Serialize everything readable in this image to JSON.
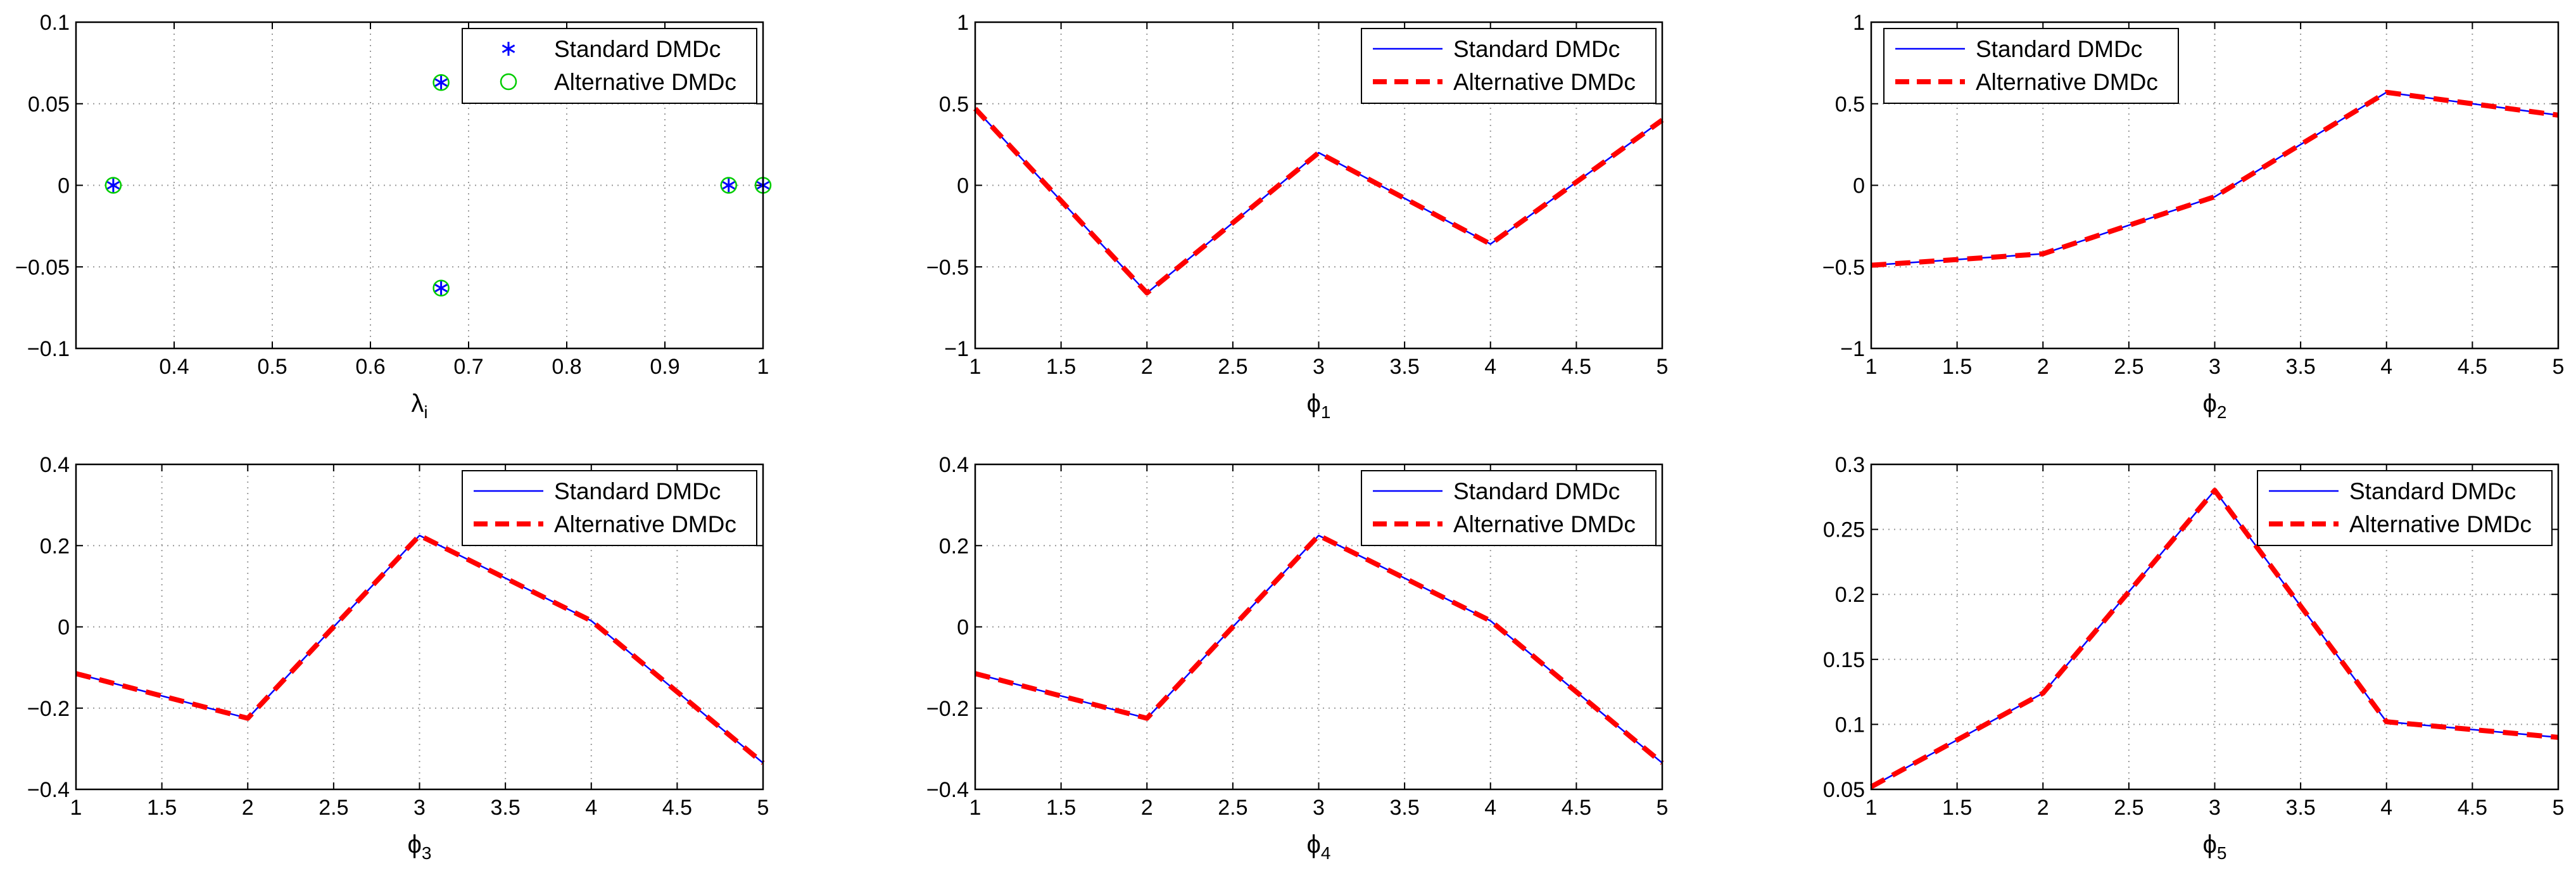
{
  "chart_data": [
    {
      "id": "eigenvalues",
      "type": "scatter",
      "xlabel": "λ",
      "xlabel_sub": "i",
      "xlim": [
        0.3,
        1.0
      ],
      "ylim": [
        -0.1,
        0.1
      ],
      "xticks": [
        0.4,
        0.5,
        0.6,
        0.7,
        0.8,
        0.9,
        1.0
      ],
      "xtick_labels": [
        "0.4",
        "0.5",
        "0.6",
        "0.7",
        "0.8",
        "0.9",
        "1"
      ],
      "yticks": [
        -0.1,
        -0.05,
        0,
        0.05,
        0.1
      ],
      "ytick_labels": [
        "−0.1",
        "−0.05",
        "0",
        "0.05",
        "0.1"
      ],
      "grid": true,
      "legend_position": "top-right",
      "series": [
        {
          "name": "Standard DMDc",
          "marker": "asterisk",
          "color": "#0000ff",
          "points": [
            [
              0.338,
              0
            ],
            [
              0.672,
              0.063
            ],
            [
              0.672,
              -0.063
            ],
            [
              0.965,
              0
            ],
            [
              1.0,
              0
            ]
          ]
        },
        {
          "name": "Alternative DMDc",
          "marker": "circle",
          "color": "#00cc00",
          "points": [
            [
              0.338,
              0
            ],
            [
              0.672,
              0.063
            ],
            [
              0.672,
              -0.063
            ],
            [
              0.965,
              0
            ],
            [
              1.0,
              0
            ]
          ]
        }
      ]
    },
    {
      "id": "phi1",
      "type": "line",
      "xlabel": "ϕ",
      "xlabel_sub": "1",
      "x": [
        1,
        2,
        3,
        4,
        5
      ],
      "xlim": [
        1,
        5
      ],
      "ylim": [
        -1,
        1
      ],
      "xticks": [
        1,
        1.5,
        2,
        2.5,
        3,
        3.5,
        4,
        4.5,
        5
      ],
      "xtick_labels": [
        "1",
        "1.5",
        "2",
        "2.5",
        "3",
        "3.5",
        "4",
        "4.5",
        "5"
      ],
      "yticks": [
        -1,
        -0.5,
        0,
        0.5,
        1
      ],
      "ytick_labels": [
        "−1",
        "−0.5",
        "0",
        "0.5",
        "1"
      ],
      "grid": true,
      "legend_position": "top-right",
      "series": [
        {
          "name": "Standard DMDc",
          "style": "solid",
          "color": "#0000ff",
          "values": [
            0.47,
            -0.66,
            0.2,
            -0.36,
            0.4
          ]
        },
        {
          "name": "Alternative DMDc",
          "style": "dashed",
          "color": "#ff0000",
          "values": [
            0.47,
            -0.66,
            0.2,
            -0.36,
            0.4
          ]
        }
      ]
    },
    {
      "id": "phi2",
      "type": "line",
      "xlabel": "ϕ",
      "xlabel_sub": "2",
      "x": [
        1,
        2,
        3,
        4,
        5
      ],
      "xlim": [
        1,
        5
      ],
      "ylim": [
        -1,
        1
      ],
      "xticks": [
        1,
        1.5,
        2,
        2.5,
        3,
        3.5,
        4,
        4.5,
        5
      ],
      "xtick_labels": [
        "1",
        "1.5",
        "2",
        "2.5",
        "3",
        "3.5",
        "4",
        "4.5",
        "5"
      ],
      "yticks": [
        -1,
        -0.5,
        0,
        0.5,
        1
      ],
      "ytick_labels": [
        "−1",
        "−0.5",
        "0",
        "0.5",
        "1"
      ],
      "grid": true,
      "legend_position": "top-left",
      "series": [
        {
          "name": "Standard DMDc",
          "style": "solid",
          "color": "#0000ff",
          "values": [
            -0.49,
            -0.42,
            -0.07,
            0.57,
            0.43
          ]
        },
        {
          "name": "Alternative DMDc",
          "style": "dashed",
          "color": "#ff0000",
          "values": [
            -0.49,
            -0.42,
            -0.07,
            0.57,
            0.43
          ]
        }
      ]
    },
    {
      "id": "phi3",
      "type": "line",
      "xlabel": "ϕ",
      "xlabel_sub": "3",
      "x": [
        1,
        2,
        3,
        4,
        5
      ],
      "xlim": [
        1,
        5
      ],
      "ylim": [
        -0.4,
        0.4
      ],
      "xticks": [
        1,
        1.5,
        2,
        2.5,
        3,
        3.5,
        4,
        4.5,
        5
      ],
      "xtick_labels": [
        "1",
        "1.5",
        "2",
        "2.5",
        "3",
        "3.5",
        "4",
        "4.5",
        "5"
      ],
      "yticks": [
        -0.4,
        -0.2,
        0,
        0.2,
        0.4
      ],
      "ytick_labels": [
        "−0.4",
        "−0.2",
        "0",
        "0.2",
        "0.4"
      ],
      "grid": true,
      "legend_position": "top-right",
      "series": [
        {
          "name": "Standard DMDc",
          "style": "solid",
          "color": "#0000ff",
          "values": [
            -0.115,
            -0.225,
            0.225,
            0.015,
            -0.335
          ]
        },
        {
          "name": "Alternative DMDc",
          "style": "dashed",
          "color": "#ff0000",
          "values": [
            -0.115,
            -0.225,
            0.225,
            0.015,
            -0.335
          ]
        }
      ]
    },
    {
      "id": "phi4",
      "type": "line",
      "xlabel": "ϕ",
      "xlabel_sub": "4",
      "x": [
        1,
        2,
        3,
        4,
        5
      ],
      "xlim": [
        1,
        5
      ],
      "ylim": [
        -0.4,
        0.4
      ],
      "xticks": [
        1,
        1.5,
        2,
        2.5,
        3,
        3.5,
        4,
        4.5,
        5
      ],
      "xtick_labels": [
        "1",
        "1.5",
        "2",
        "2.5",
        "3",
        "3.5",
        "4",
        "4.5",
        "5"
      ],
      "yticks": [
        -0.4,
        -0.2,
        0,
        0.2,
        0.4
      ],
      "ytick_labels": [
        "−0.4",
        "−0.2",
        "0",
        "0.2",
        "0.4"
      ],
      "grid": true,
      "legend_position": "top-right",
      "series": [
        {
          "name": "Standard DMDc",
          "style": "solid",
          "color": "#0000ff",
          "values": [
            -0.115,
            -0.225,
            0.225,
            0.015,
            -0.335
          ]
        },
        {
          "name": "Alternative DMDc",
          "style": "dashed",
          "color": "#ff0000",
          "values": [
            -0.115,
            -0.225,
            0.225,
            0.015,
            -0.335
          ]
        }
      ]
    },
    {
      "id": "phi5",
      "type": "line",
      "xlabel": "ϕ",
      "xlabel_sub": "5",
      "x": [
        1,
        2,
        3,
        4,
        5
      ],
      "xlim": [
        1,
        5
      ],
      "ylim": [
        0.05,
        0.3
      ],
      "xticks": [
        1,
        1.5,
        2,
        2.5,
        3,
        3.5,
        4,
        4.5,
        5
      ],
      "xtick_labels": [
        "1",
        "1.5",
        "2",
        "2.5",
        "3",
        "3.5",
        "4",
        "4.5",
        "5"
      ],
      "yticks": [
        0.05,
        0.1,
        0.15,
        0.2,
        0.25,
        0.3
      ],
      "ytick_labels": [
        "0.05",
        "0.1",
        "0.15",
        "0.2",
        "0.25",
        "0.3"
      ],
      "grid": true,
      "legend_position": "top-right",
      "series": [
        {
          "name": "Standard DMDc",
          "style": "solid",
          "color": "#0000ff",
          "values": [
            0.052,
            0.124,
            0.28,
            0.102,
            0.09
          ]
        },
        {
          "name": "Alternative DMDc",
          "style": "dashed",
          "color": "#ff0000",
          "values": [
            0.052,
            0.124,
            0.28,
            0.102,
            0.09
          ]
        }
      ]
    }
  ]
}
